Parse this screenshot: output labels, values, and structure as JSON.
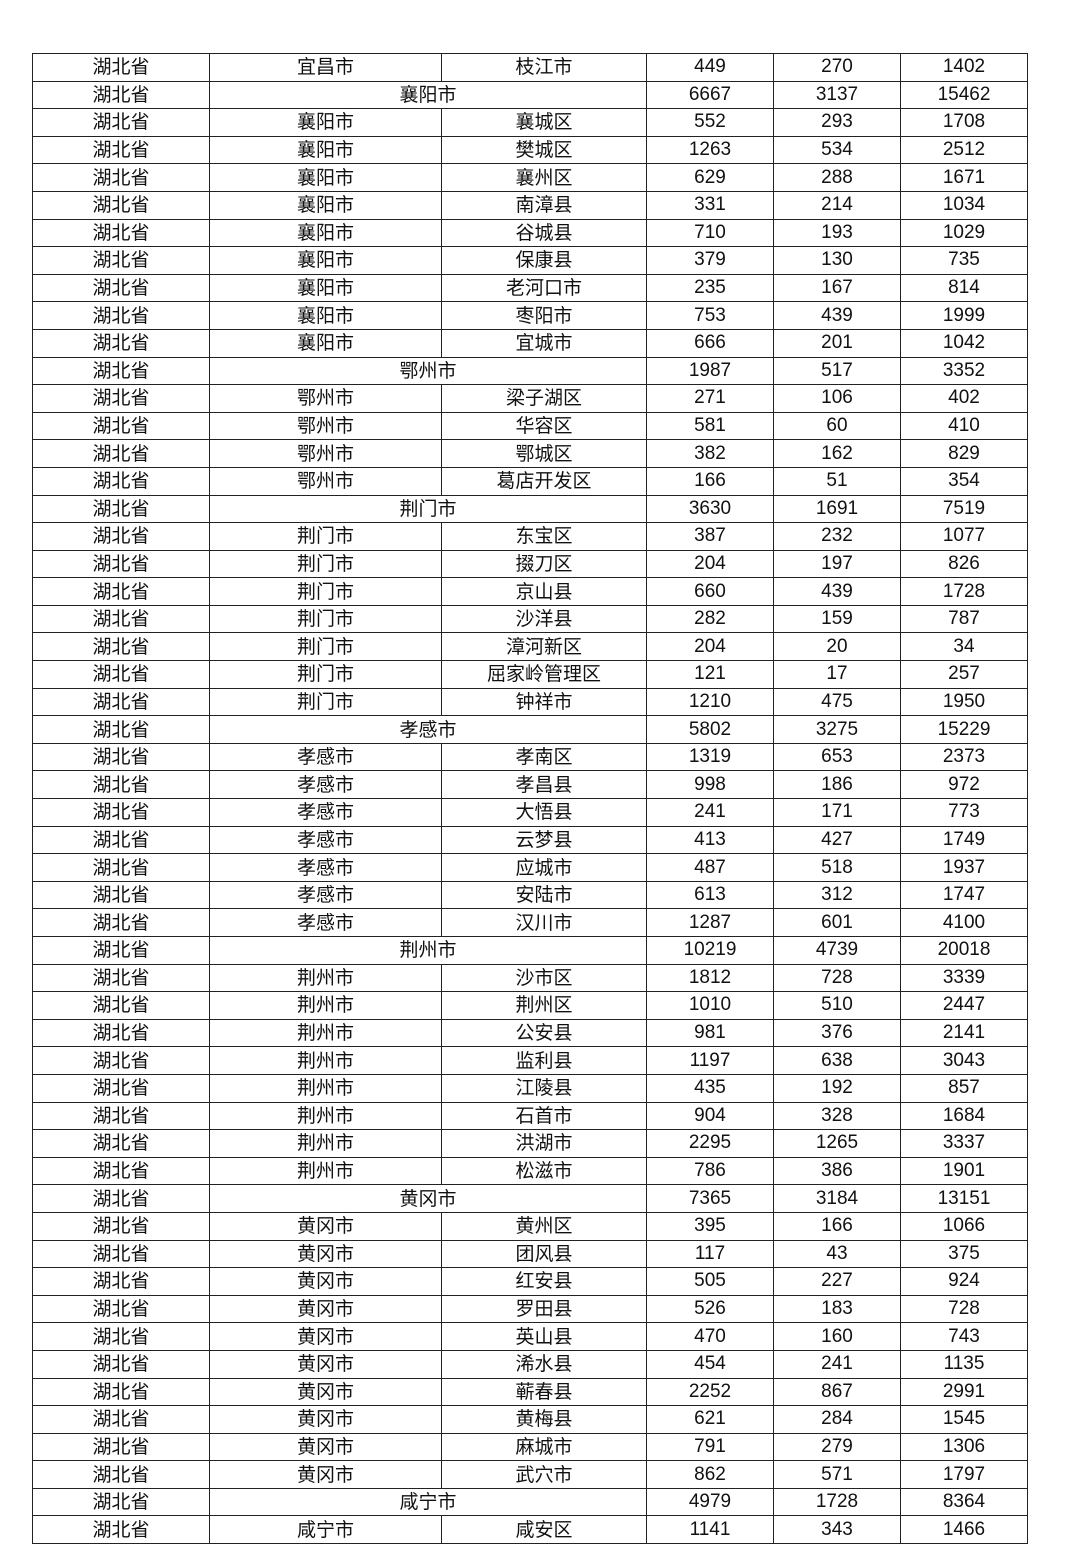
{
  "table": {
    "rows": [
      [
        "湖北省",
        "宜昌市",
        "枝江市",
        "449",
        "270",
        "1402"
      ],
      [
        "湖北省",
        "襄阳市",
        null,
        "6667",
        "3137",
        "15462"
      ],
      [
        "湖北省",
        "襄阳市",
        "襄城区",
        "552",
        "293",
        "1708"
      ],
      [
        "湖北省",
        "襄阳市",
        "樊城区",
        "1263",
        "534",
        "2512"
      ],
      [
        "湖北省",
        "襄阳市",
        "襄州区",
        "629",
        "288",
        "1671"
      ],
      [
        "湖北省",
        "襄阳市",
        "南漳县",
        "331",
        "214",
        "1034"
      ],
      [
        "湖北省",
        "襄阳市",
        "谷城县",
        "710",
        "193",
        "1029"
      ],
      [
        "湖北省",
        "襄阳市",
        "保康县",
        "379",
        "130",
        "735"
      ],
      [
        "湖北省",
        "襄阳市",
        "老河口市",
        "235",
        "167",
        "814"
      ],
      [
        "湖北省",
        "襄阳市",
        "枣阳市",
        "753",
        "439",
        "1999"
      ],
      [
        "湖北省",
        "襄阳市",
        "宜城市",
        "666",
        "201",
        "1042"
      ],
      [
        "湖北省",
        "鄂州市",
        null,
        "1987",
        "517",
        "3352"
      ],
      [
        "湖北省",
        "鄂州市",
        "梁子湖区",
        "271",
        "106",
        "402"
      ],
      [
        "湖北省",
        "鄂州市",
        "华容区",
        "581",
        "60",
        "410"
      ],
      [
        "湖北省",
        "鄂州市",
        "鄂城区",
        "382",
        "162",
        "829"
      ],
      [
        "湖北省",
        "鄂州市",
        "葛店开发区",
        "166",
        "51",
        "354"
      ],
      [
        "湖北省",
        "荆门市",
        null,
        "3630",
        "1691",
        "7519"
      ],
      [
        "湖北省",
        "荆门市",
        "东宝区",
        "387",
        "232",
        "1077"
      ],
      [
        "湖北省",
        "荆门市",
        "掇刀区",
        "204",
        "197",
        "826"
      ],
      [
        "湖北省",
        "荆门市",
        "京山县",
        "660",
        "439",
        "1728"
      ],
      [
        "湖北省",
        "荆门市",
        "沙洋县",
        "282",
        "159",
        "787"
      ],
      [
        "湖北省",
        "荆门市",
        "漳河新区",
        "204",
        "20",
        "34"
      ],
      [
        "湖北省",
        "荆门市",
        "屈家岭管理区",
        "121",
        "17",
        "257"
      ],
      [
        "湖北省",
        "荆门市",
        "钟祥市",
        "1210",
        "475",
        "1950"
      ],
      [
        "湖北省",
        "孝感市",
        null,
        "5802",
        "3275",
        "15229"
      ],
      [
        "湖北省",
        "孝感市",
        "孝南区",
        "1319",
        "653",
        "2373"
      ],
      [
        "湖北省",
        "孝感市",
        "孝昌县",
        "998",
        "186",
        "972"
      ],
      [
        "湖北省",
        "孝感市",
        "大悟县",
        "241",
        "171",
        "773"
      ],
      [
        "湖北省",
        "孝感市",
        "云梦县",
        "413",
        "427",
        "1749"
      ],
      [
        "湖北省",
        "孝感市",
        "应城市",
        "487",
        "518",
        "1937"
      ],
      [
        "湖北省",
        "孝感市",
        "安陆市",
        "613",
        "312",
        "1747"
      ],
      [
        "湖北省",
        "孝感市",
        "汉川市",
        "1287",
        "601",
        "4100"
      ],
      [
        "湖北省",
        "荆州市",
        null,
        "10219",
        "4739",
        "20018"
      ],
      [
        "湖北省",
        "荆州市",
        "沙市区",
        "1812",
        "728",
        "3339"
      ],
      [
        "湖北省",
        "荆州市",
        "荆州区",
        "1010",
        "510",
        "2447"
      ],
      [
        "湖北省",
        "荆州市",
        "公安县",
        "981",
        "376",
        "2141"
      ],
      [
        "湖北省",
        "荆州市",
        "监利县",
        "1197",
        "638",
        "3043"
      ],
      [
        "湖北省",
        "荆州市",
        "江陵县",
        "435",
        "192",
        "857"
      ],
      [
        "湖北省",
        "荆州市",
        "石首市",
        "904",
        "328",
        "1684"
      ],
      [
        "湖北省",
        "荆州市",
        "洪湖市",
        "2295",
        "1265",
        "3337"
      ],
      [
        "湖北省",
        "荆州市",
        "松滋市",
        "786",
        "386",
        "1901"
      ],
      [
        "湖北省",
        "黄冈市",
        null,
        "7365",
        "3184",
        "13151"
      ],
      [
        "湖北省",
        "黄冈市",
        "黄州区",
        "395",
        "166",
        "1066"
      ],
      [
        "湖北省",
        "黄冈市",
        "团风县",
        "117",
        "43",
        "375"
      ],
      [
        "湖北省",
        "黄冈市",
        "红安县",
        "505",
        "227",
        "924"
      ],
      [
        "湖北省",
        "黄冈市",
        "罗田县",
        "526",
        "183",
        "728"
      ],
      [
        "湖北省",
        "黄冈市",
        "英山县",
        "470",
        "160",
        "743"
      ],
      [
        "湖北省",
        "黄冈市",
        "浠水县",
        "454",
        "241",
        "1135"
      ],
      [
        "湖北省",
        "黄冈市",
        "蕲春县",
        "2252",
        "867",
        "2991"
      ],
      [
        "湖北省",
        "黄冈市",
        "黄梅县",
        "621",
        "284",
        "1545"
      ],
      [
        "湖北省",
        "黄冈市",
        "麻城市",
        "791",
        "279",
        "1306"
      ],
      [
        "湖北省",
        "黄冈市",
        "武穴市",
        "862",
        "571",
        "1797"
      ],
      [
        "湖北省",
        "咸宁市",
        null,
        "4979",
        "1728",
        "8364"
      ],
      [
        "湖北省",
        "咸宁市",
        "咸安区",
        "1141",
        "343",
        "1466"
      ]
    ]
  }
}
